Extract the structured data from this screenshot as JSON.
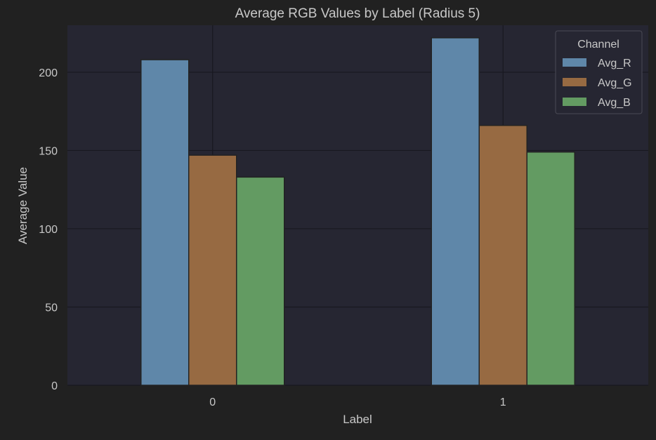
{
  "chart_data": {
    "type": "bar",
    "title": "Average RGB Values by Label (Radius 5)",
    "xlabel": "Label",
    "ylabel": "Average Value",
    "categories": [
      "0",
      "1"
    ],
    "series": [
      {
        "name": "Avg_R",
        "values": [
          208,
          222
        ],
        "color": "#5f87a9"
      },
      {
        "name": "Avg_G",
        "values": [
          147,
          166
        ],
        "color": "#976a42"
      },
      {
        "name": "Avg_B",
        "values": [
          133,
          149
        ],
        "color": "#639b62"
      }
    ],
    "ylim": [
      0,
      230
    ],
    "yticks": [
      0,
      50,
      100,
      150,
      200
    ],
    "grid": true,
    "legend": {
      "title": "Channel",
      "position": "top-right"
    },
    "colors": {
      "background": "#212121",
      "plot_background": "#262632",
      "grid": "#181820",
      "text": "#c8c8c8",
      "bar_edge": "#222222"
    }
  }
}
